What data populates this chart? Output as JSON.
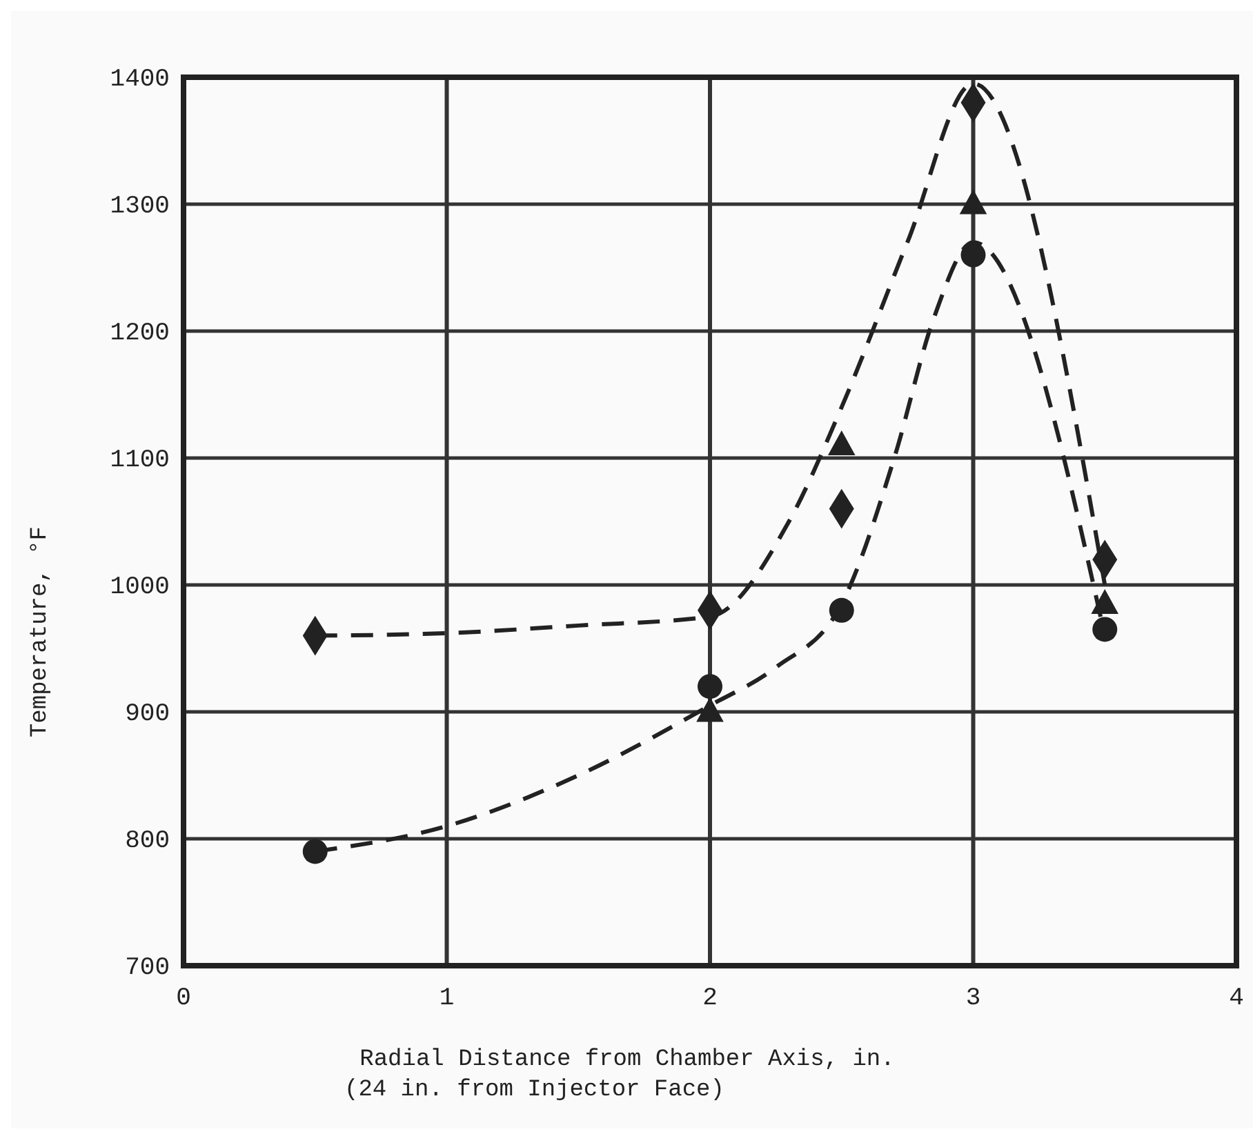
{
  "chart_data": {
    "type": "scatter",
    "xlabel": "Radial Distance from Chamber Axis, in.",
    "ylabel": "Temperature, °F",
    "annotations": [
      "(24 in. from Injector Face)"
    ],
    "x": [
      0.5,
      2,
      2.5,
      3,
      3.5
    ],
    "xlim": [
      0,
      4
    ],
    "xticks": [
      0,
      1,
      2,
      3,
      4
    ],
    "ylim": [
      700,
      1400
    ],
    "yticks": [
      700,
      800,
      900,
      1000,
      1100,
      1200,
      1300,
      1400
    ],
    "grid": true,
    "series": [
      {
        "marker": "diamond",
        "color": "#222222",
        "values": [
          960,
          980,
          1060,
          1380,
          1020
        ]
      },
      {
        "marker": "triangle",
        "color": "#222222",
        "values": [
          null,
          900,
          1110,
          1300,
          985
        ]
      },
      {
        "marker": "circle",
        "color": "#222222",
        "values": [
          790,
          920,
          980,
          1260,
          965
        ]
      },
      {
        "type": "line",
        "marker": "none",
        "line_style": "dashed",
        "color": "#222222",
        "x": [
          0.5,
          1,
          1.5,
          2,
          2.3,
          2.5,
          2.75,
          3,
          3.5
        ],
        "values": [
          960,
          962,
          968,
          975,
          1050,
          1140,
          1270,
          1395,
          1000
        ]
      },
      {
        "type": "line",
        "marker": "none",
        "line_style": "dashed",
        "color": "#222222",
        "x": [
          0.5,
          1,
          1.5,
          2,
          2.25,
          2.5,
          2.7,
          2.85,
          3,
          3.5
        ],
        "values": [
          790,
          810,
          850,
          905,
          935,
          985,
          1100,
          1210,
          1270,
          960
        ]
      }
    ]
  }
}
